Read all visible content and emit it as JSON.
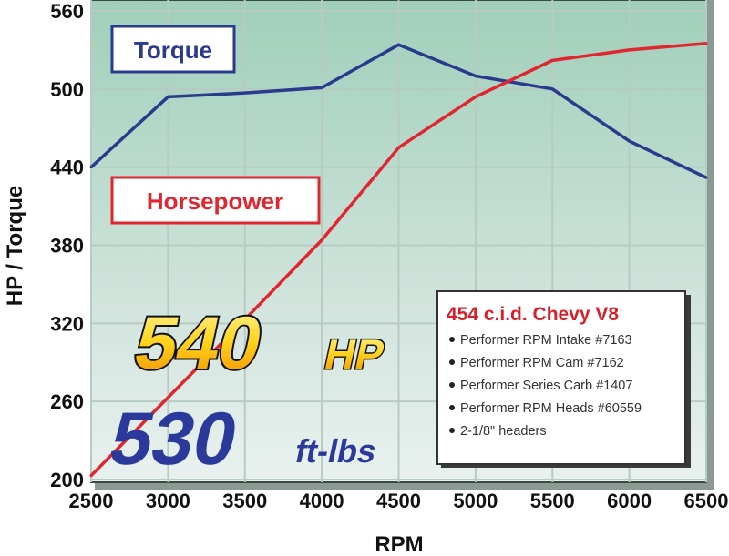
{
  "chart_data": {
    "type": "line",
    "title": "",
    "xlabel": "RPM",
    "ylabel": "HP / Torque",
    "xlim": [
      2500,
      6500
    ],
    "ylim": [
      200,
      560
    ],
    "x": [
      2500,
      3000,
      3500,
      4000,
      4500,
      5000,
      5500,
      6000,
      6500
    ],
    "xticks": [
      "2500",
      "3000",
      "3500",
      "4000",
      "4500",
      "5000",
      "5500",
      "6000",
      "6500"
    ],
    "yticks": [
      "200",
      "260",
      "320",
      "380",
      "440",
      "500",
      "560"
    ],
    "grid": true,
    "series": [
      {
        "name": "Torque",
        "color": "#2a3a8c",
        "values": [
          440,
          494,
          497,
          501,
          534,
          510,
          500,
          460,
          432
        ]
      },
      {
        "name": "Horsepower",
        "color": "#e0262e",
        "values": [
          203,
          263,
          323,
          384,
          455,
          494,
          522,
          530,
          535
        ]
      }
    ],
    "annotations": {
      "hp_big": "540",
      "hp_unit": "HP",
      "tq_big": "530",
      "tq_unit": "ft-lbs"
    },
    "spec_box": {
      "title": "454 c.i.d. Chevy V8",
      "items": [
        "Performer RPM Intake #7163",
        "Performer RPM Cam #7162",
        "Performer Series Carb #1407",
        "Performer RPM Heads #60559",
        "2-1/8\" headers"
      ]
    }
  }
}
